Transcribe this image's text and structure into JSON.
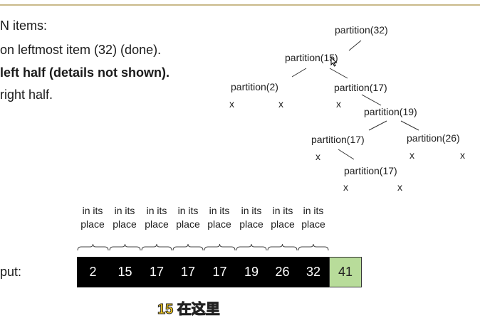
{
  "left_text": {
    "line1": "N items:",
    "line2": "on leftmost item (32) (done).",
    "line3": "left half (details not shown).",
    "line4": "right half.",
    "output_label": "put:"
  },
  "tree": {
    "nodes": [
      {
        "id": "n32",
        "label": "partition(32)"
      },
      {
        "id": "n15",
        "label": "partition(15)"
      },
      {
        "id": "n2",
        "label": "partition(2)"
      },
      {
        "id": "n17a",
        "label": "partition(17)"
      },
      {
        "id": "n19",
        "label": "partition(19)"
      },
      {
        "id": "n17b",
        "label": "partition(17)"
      },
      {
        "id": "n26",
        "label": "partition(26)"
      },
      {
        "id": "n17c",
        "label": "partition(17)"
      }
    ],
    "leaf_marker": "x"
  },
  "place_labels": [
    {
      "line1": "in its",
      "line2": "place"
    },
    {
      "line1": "in its",
      "line2": "place"
    },
    {
      "line1": "in its",
      "line2": "place"
    },
    {
      "line1": "in its",
      "line2": "place"
    },
    {
      "line1": "in its",
      "line2": "place"
    },
    {
      "line1": "in its",
      "line2": "place"
    },
    {
      "line1": "in its",
      "line2": "place"
    },
    {
      "line1": "in its",
      "line2": "place"
    }
  ],
  "array": [
    "2",
    "15",
    "17",
    "17",
    "17",
    "19",
    "26",
    "32",
    "41"
  ],
  "colors": {
    "sorted_cell": "#000000",
    "pivot_cell": "#b8dc9a",
    "caption": "#ffd21e"
  },
  "caption": "15 在这里"
}
